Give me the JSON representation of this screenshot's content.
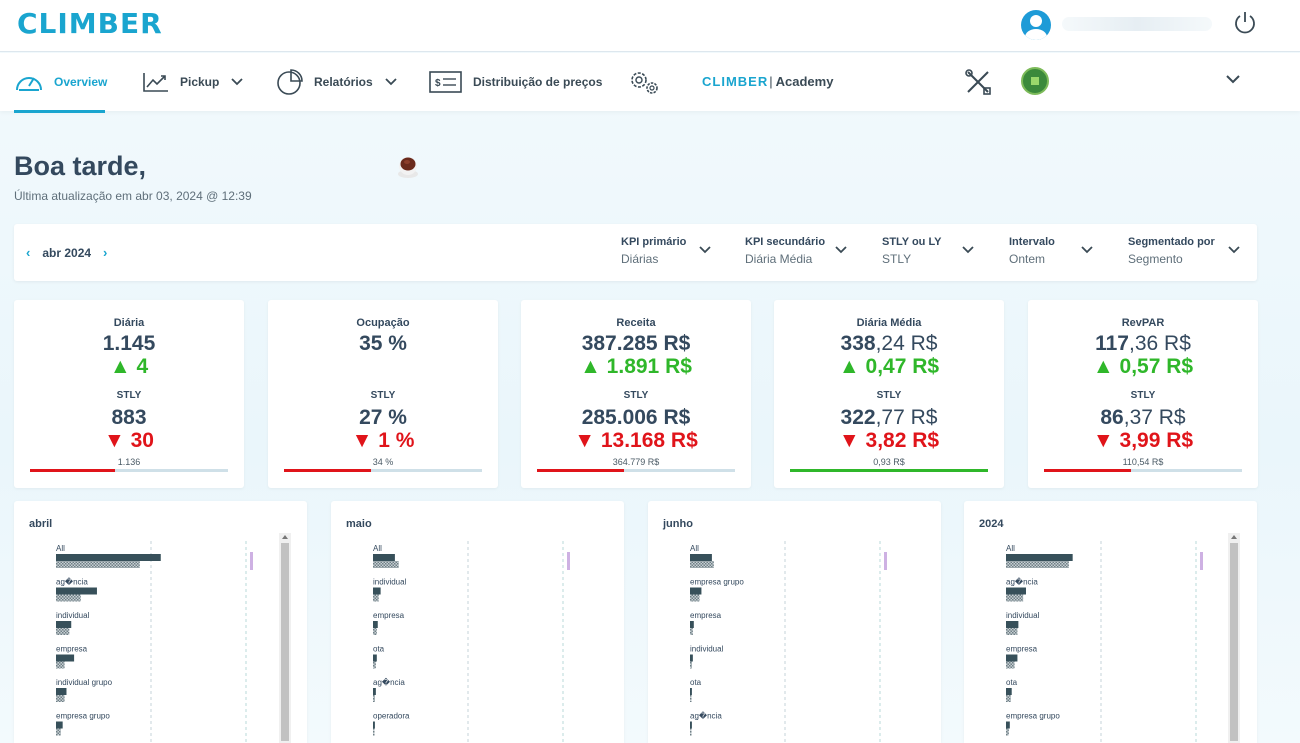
{
  "header": {
    "logo": "CLIMBER",
    "user_name": ""
  },
  "nav": {
    "items": [
      {
        "label": "Overview",
        "icon": "gauge-icon",
        "active": true
      },
      {
        "label": "Pickup",
        "icon": "trend-chart-icon",
        "dropdown": true
      },
      {
        "label": "Relatórios",
        "icon": "pie-chart-icon",
        "dropdown": true
      },
      {
        "label": "Distribuição de preços",
        "icon": "price-tag-icon"
      },
      {
        "label": "",
        "icon": "gears-icon"
      }
    ],
    "academy": {
      "brand": "CLIMBER",
      "label": "Academy"
    }
  },
  "greeting": {
    "title": "Boa tarde,",
    "updated": "Última atualização em abr 03, 2024 @ 12:39"
  },
  "filters": {
    "month": "abr 2024",
    "items": [
      {
        "label": "KPI primário",
        "value": "Diárias"
      },
      {
        "label": "KPI secundário",
        "value": "Diária Média"
      },
      {
        "label": "STLY ou LY",
        "value": "STLY"
      },
      {
        "label": "Intervalo",
        "value": "Ontem"
      },
      {
        "label": "Segmentado por",
        "value": "Segmento"
      }
    ]
  },
  "colors": {
    "accent": "#1aa5cf",
    "up": "#2fb72a",
    "down": "#e0141a",
    "bar": "#37505a"
  },
  "kpis": [
    {
      "title": "Diária",
      "main_int": "1.145",
      "main_dec": "",
      "delta": "▲ 4",
      "delta_dir": "up",
      "cmp_label": "STLY",
      "cmp_int": "883",
      "cmp_dec": "",
      "cmp_delta": "▼ 30",
      "cmp_dir": "down",
      "target": "1.136",
      "progress": 0.43,
      "bar_color": "#e0141a"
    },
    {
      "title": "Ocupação",
      "main_int": "35 %",
      "main_dec": "",
      "delta": "",
      "delta_dir": "up",
      "cmp_label": "STLY",
      "cmp_int": "27 %",
      "cmp_dec": "",
      "cmp_delta": "▼ 1 %",
      "cmp_dir": "down",
      "target": "34 %",
      "progress": 0.44,
      "bar_color": "#e0141a"
    },
    {
      "title": "Receita",
      "main_int": "387.285 R$",
      "main_dec": "",
      "delta": "▲ 1.891 R$",
      "delta_dir": "up",
      "cmp_label": "STLY",
      "cmp_int": "285.006 R$",
      "cmp_dec": "",
      "cmp_delta": "▼ 13.168 R$",
      "cmp_dir": "down",
      "target": "364.779 R$",
      "progress": 0.44,
      "bar_color": "#e0141a"
    },
    {
      "title": "Diária Média",
      "main_int": "338",
      "main_dec": ",24 R$",
      "delta": "▲ 0,47 R$",
      "delta_dir": "up",
      "cmp_label": "STLY",
      "cmp_int": "322",
      "cmp_dec": ",77 R$",
      "cmp_delta": "▼ 3,82 R$",
      "cmp_dir": "down",
      "target": "0,93 R$",
      "progress": 1.0,
      "bar_color": "#2fb72a"
    },
    {
      "title": "RevPAR",
      "main_int": "117",
      "main_dec": ",36 R$",
      "delta": "▲ 0,57 R$",
      "delta_dir": "up",
      "cmp_label": "STLY",
      "cmp_int": "86",
      "cmp_dec": ",37 R$",
      "cmp_delta": "▼ 3,99 R$",
      "cmp_dir": "down",
      "target": "110,54 R$",
      "progress": 0.44,
      "bar_color": "#e0141a"
    }
  ],
  "panels": [
    {
      "title": "abril",
      "scrollbar": true,
      "segments": [
        {
          "label": "All",
          "current": 110,
          "stly": 88
        },
        {
          "label": "ag�ncia",
          "current": 43,
          "stly": 26
        },
        {
          "label": "individual",
          "current": 16,
          "stly": 14
        },
        {
          "label": "empresa",
          "current": 19,
          "stly": 9
        },
        {
          "label": "individual grupo",
          "current": 11,
          "stly": 9
        },
        {
          "label": "empresa grupo",
          "current": 7,
          "stly": 5
        }
      ]
    },
    {
      "title": "maio",
      "scrollbar": false,
      "segments": [
        {
          "label": "All",
          "current": 23,
          "stly": 27
        },
        {
          "label": "individual",
          "current": 8,
          "stly": 6
        },
        {
          "label": "empresa",
          "current": 5,
          "stly": 4
        },
        {
          "label": "ota",
          "current": 4,
          "stly": 3
        },
        {
          "label": "ag�ncia",
          "current": 3,
          "stly": 2
        },
        {
          "label": "operadora",
          "current": 2,
          "stly": 1
        }
      ]
    },
    {
      "title": "junho",
      "scrollbar": false,
      "segments": [
        {
          "label": "All",
          "current": 23,
          "stly": 25
        },
        {
          "label": "empresa grupo",
          "current": 12,
          "stly": 10
        },
        {
          "label": "empresa",
          "current": 4,
          "stly": 3
        },
        {
          "label": "individual",
          "current": 3,
          "stly": 2
        },
        {
          "label": "ota",
          "current": 2,
          "stly": 1
        },
        {
          "label": "ag�ncia",
          "current": 2,
          "stly": 1
        }
      ]
    },
    {
      "title": "2024",
      "scrollbar": true,
      "segments": [
        {
          "label": "All",
          "current": 70,
          "stly": 66
        },
        {
          "label": "ag�ncia",
          "current": 21,
          "stly": 18
        },
        {
          "label": "individual",
          "current": 13,
          "stly": 12
        },
        {
          "label": "empresa",
          "current": 12,
          "stly": 9
        },
        {
          "label": "ota",
          "current": 6,
          "stly": 5
        },
        {
          "label": "empresa grupo",
          "current": 4,
          "stly": 3
        }
      ]
    }
  ]
}
